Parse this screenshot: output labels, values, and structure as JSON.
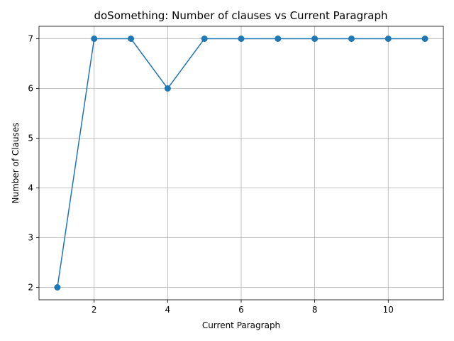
{
  "chart_data": {
    "type": "line",
    "title": "doSomething: Number of clauses vs Current Paragraph",
    "xlabel": "Current Paragraph",
    "ylabel": "Number of Clauses",
    "x": [
      1,
      2,
      3,
      4,
      5,
      6,
      7,
      8,
      9,
      10,
      11
    ],
    "series": [
      {
        "values": [
          2,
          7,
          7,
          6,
          7,
          7,
          7,
          7,
          7,
          7,
          7
        ]
      }
    ],
    "xlim": [
      0.5,
      11.5
    ],
    "ylim": [
      1.75,
      7.25
    ],
    "xticks": [
      2,
      4,
      6,
      8,
      10
    ],
    "yticks": [
      2,
      3,
      4,
      5,
      6,
      7
    ],
    "grid": true,
    "marker": "circle",
    "line_color": "#1f77b4"
  }
}
